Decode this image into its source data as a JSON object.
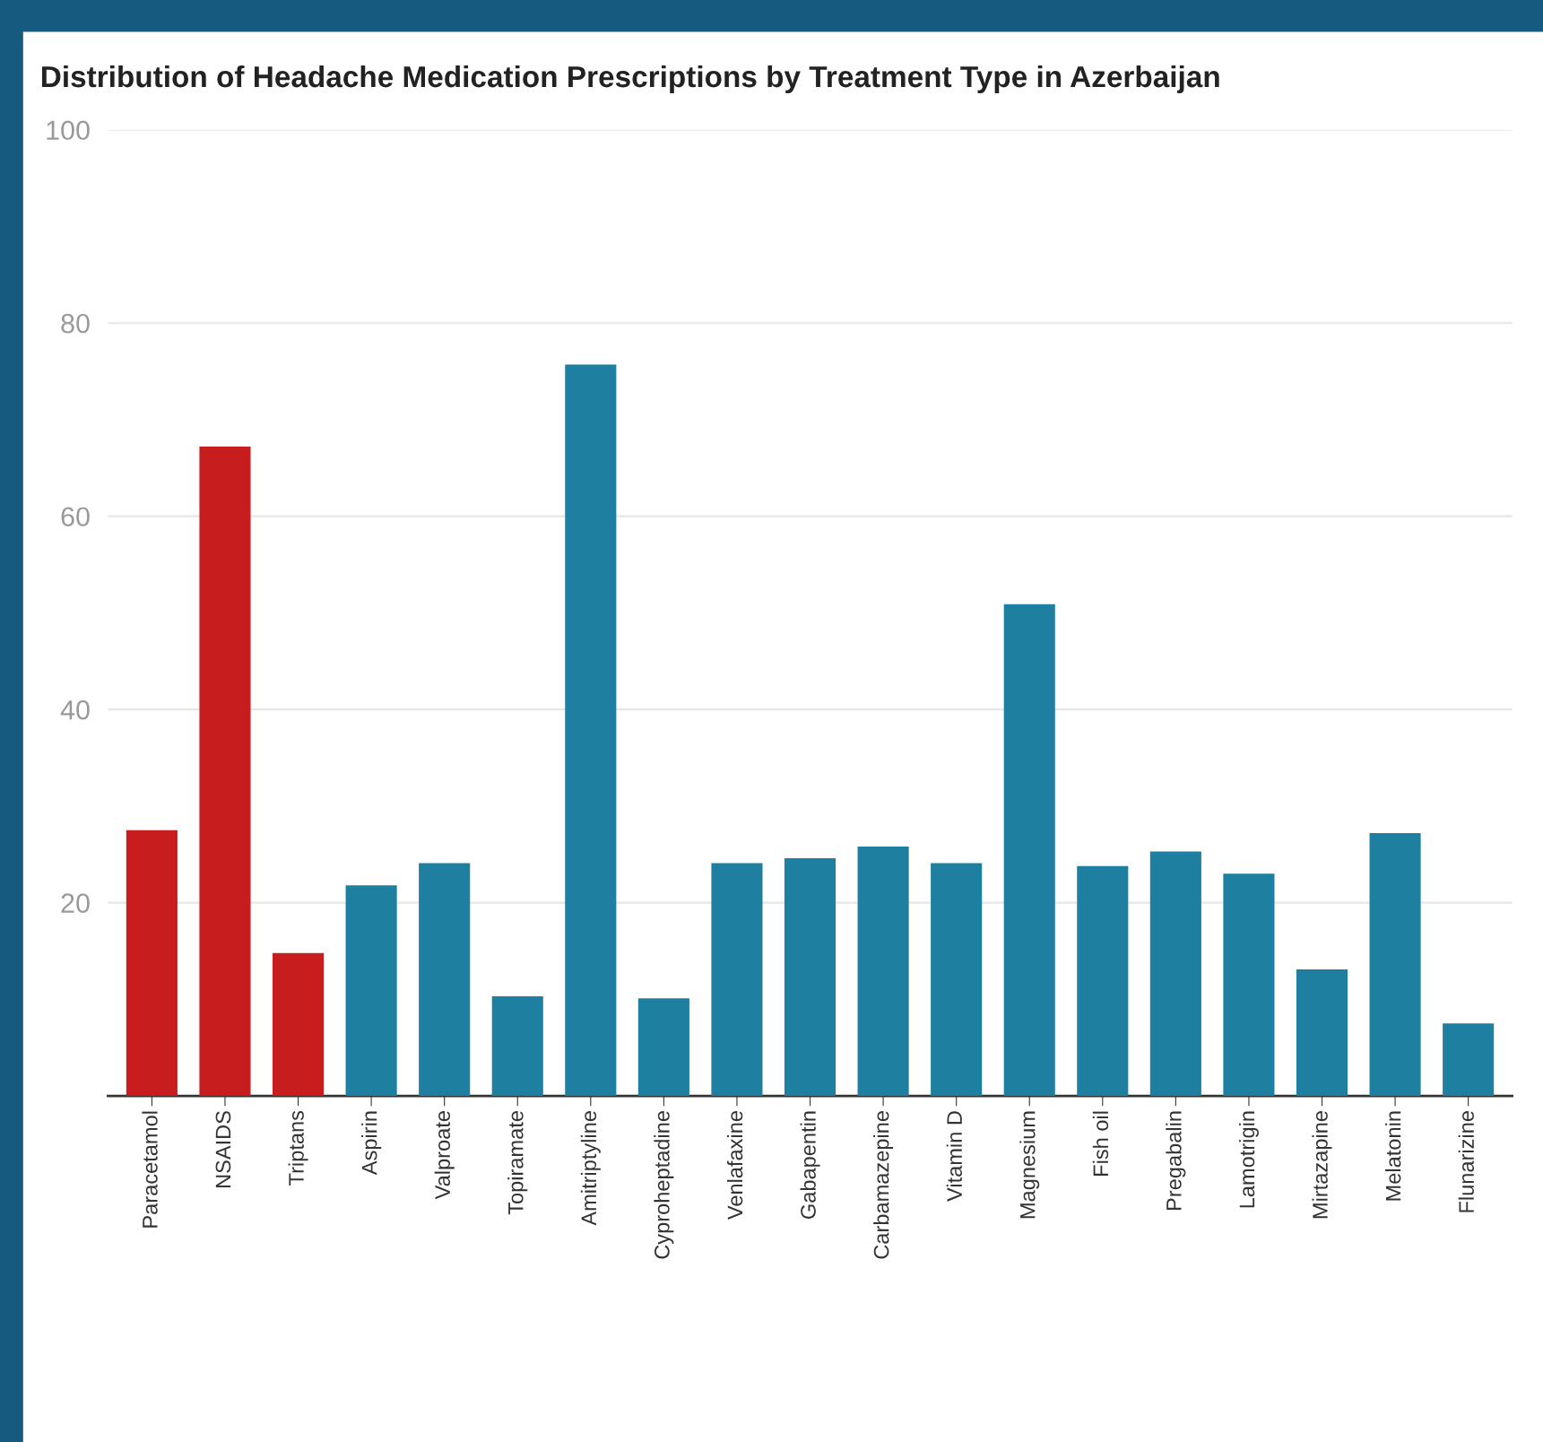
{
  "chart_data": {
    "type": "bar",
    "title": "Distribution of Headache Medication Prescriptions by Treatment Type in Azerbaijan",
    "categories": [
      "Paracetamol",
      "NSAIDS",
      "Triptans",
      "Aspirin",
      "Valproate",
      "Topiramate",
      "Amitriptyline",
      "Cyproheptadine",
      "Venlafaxine",
      "Gabapentin",
      "Carbamazepine",
      "Vitamin D",
      "Magnesium",
      "Fish oil",
      "Pregabalin",
      "Lamotrigin",
      "Mirtazapine",
      "Melatonin",
      "Flunarizine"
    ],
    "values": [
      27.5,
      67.2,
      14.8,
      21.8,
      24.1,
      10.3,
      75.7,
      10.1,
      24.1,
      24.6,
      25.8,
      24.1,
      50.9,
      23.8,
      25.3,
      23.0,
      13.1,
      27.2,
      7.5
    ],
    "colors": [
      "#c81d1f",
      "#c81d1f",
      "#c81d1f",
      "#1f7fa0",
      "#1f7fa0",
      "#1f7fa0",
      "#1f7fa0",
      "#1f7fa0",
      "#1f7fa0",
      "#1f7fa0",
      "#1f7fa0",
      "#1f7fa0",
      "#1f7fa0",
      "#1f7fa0",
      "#1f7fa0",
      "#1f7fa0",
      "#1f7fa0",
      "#1f7fa0",
      "#1f7fa0"
    ],
    "ylim": [
      0,
      100
    ],
    "yticks": [
      20,
      40,
      60,
      80,
      100
    ],
    "grid": "y"
  }
}
